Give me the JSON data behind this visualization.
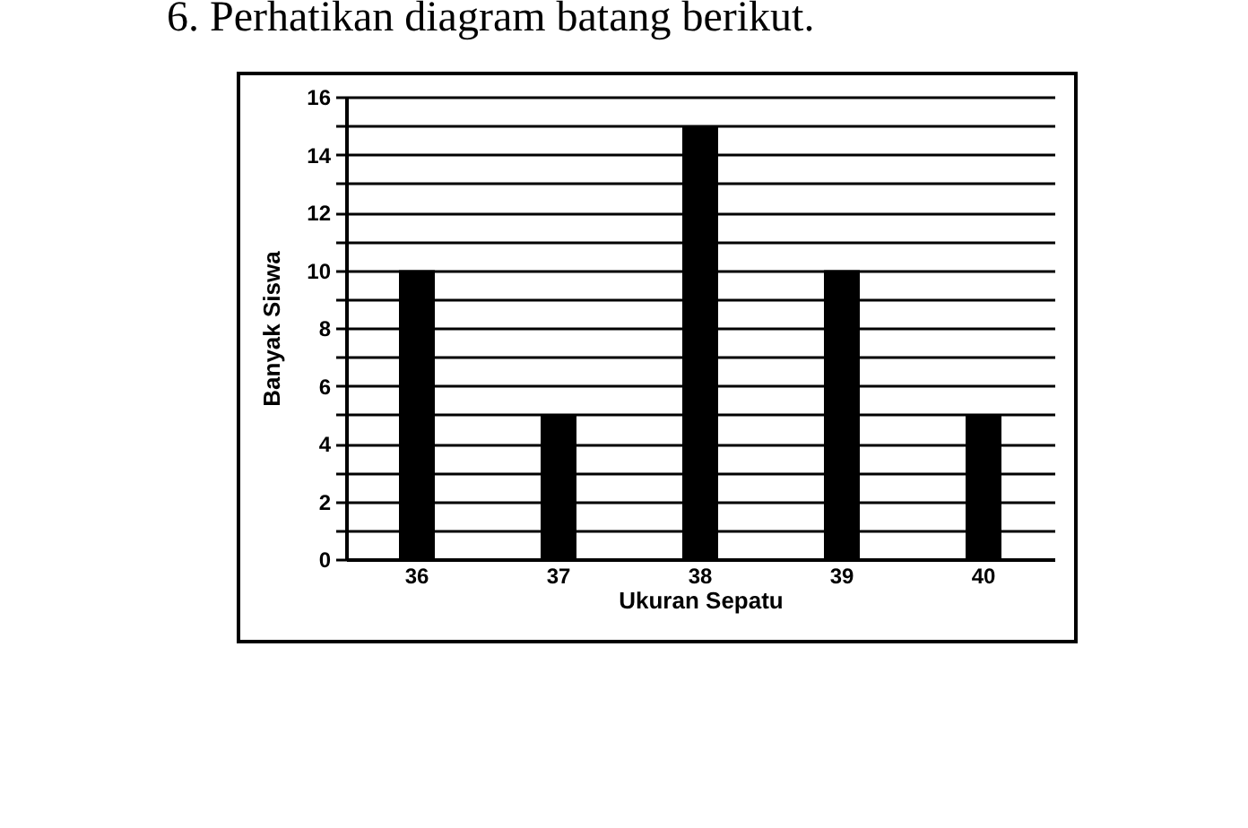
{
  "chart_data": {
    "type": "bar",
    "title": "6. Perhatikan diagram batang berikut.",
    "xlabel": "Ukuran Sepatu",
    "ylabel": "Banyak Siswa",
    "categories": [
      "36",
      "37",
      "38",
      "39",
      "40"
    ],
    "values": [
      10,
      5,
      15,
      10,
      5
    ],
    "color": "#000000",
    "ylim": [
      0,
      16
    ],
    "yticks": [
      0,
      {
        "value": 1,
        "label": null
      },
      2,
      {
        "value": 3,
        "label": null
      },
      4,
      {
        "value": 5,
        "label": null
      },
      6,
      {
        "value": 7,
        "label": null
      },
      8,
      {
        "value": 9,
        "label": null
      },
      10,
      {
        "value": 11,
        "label": null
      },
      12,
      {
        "value": 13,
        "label": null
      },
      14,
      {
        "value": 15,
        "label": null
      },
      16
    ],
    "grid": "y"
  }
}
